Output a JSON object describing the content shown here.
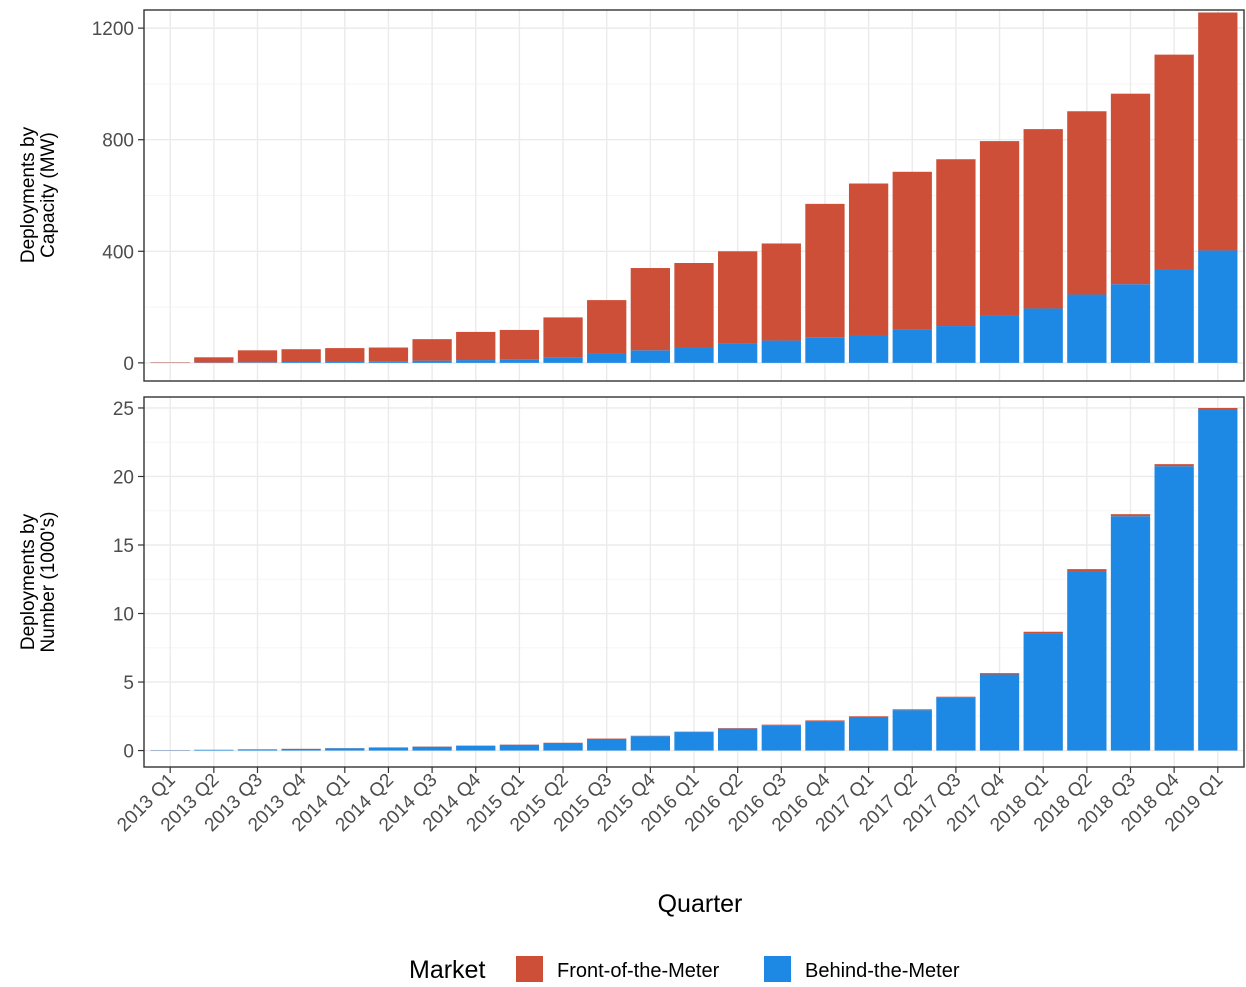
{
  "colors": {
    "front_of_meter": "#CD4F38",
    "behind_meter": "#1E88E5",
    "grid_major": "#EBEBEB",
    "grid_minor": "#F5F5F5",
    "panel_border": "#333333",
    "tick_text": "#4D4D4D"
  },
  "legend": {
    "title": "Market",
    "items": [
      {
        "label": "Front-of-the-Meter",
        "color": "#CD4F38"
      },
      {
        "label": "Behind-the-Meter",
        "color": "#1E88E5"
      }
    ],
    "placement": "bottom"
  },
  "chart_data": [
    {
      "type": "bar",
      "stacked": true,
      "ylabel": "Deployments by Capacity (MW)",
      "xlabel": "Quarter",
      "ylim": [
        -65,
        1265
      ],
      "yticks": [
        0,
        400,
        800,
        1200
      ],
      "grid": true,
      "categories": [
        "2013 Q1",
        "2013 Q2",
        "2013 Q3",
        "2013 Q4",
        "2014 Q1",
        "2014 Q2",
        "2014 Q3",
        "2014 Q4",
        "2015 Q1",
        "2015 Q2",
        "2015 Q3",
        "2015 Q4",
        "2016 Q1",
        "2016 Q2",
        "2016 Q3",
        "2016 Q4",
        "2017 Q1",
        "2017 Q2",
        "2017 Q3",
        "2017 Q4",
        "2018 Q1",
        "2018 Q2",
        "2018 Q3",
        "2018 Q4",
        "2019 Q1"
      ],
      "series": [
        {
          "name": "Behind-the-Meter",
          "values": [
            0.5,
            1,
            2,
            3,
            5,
            6,
            8,
            10,
            13,
            18,
            32,
            45,
            55,
            68,
            80,
            90,
            100,
            120,
            132,
            170,
            195,
            245,
            282,
            333,
            403
          ]
        },
        {
          "name": "Front-of-the-Meter",
          "values": [
            1.5,
            19,
            43,
            46,
            48,
            49,
            77,
            101,
            105,
            145,
            193,
            295,
            303,
            332,
            348,
            480,
            543,
            565,
            598,
            625,
            643,
            657,
            683,
            772,
            853
          ]
        }
      ]
    },
    {
      "type": "bar",
      "stacked": true,
      "ylabel": "Deployments by Number (1000's)",
      "xlabel": "Quarter",
      "ylim": [
        -1.2,
        25.8
      ],
      "yticks": [
        0,
        5,
        10,
        15,
        20,
        25
      ],
      "grid": true,
      "categories": [
        "2013 Q1",
        "2013 Q2",
        "2013 Q3",
        "2013 Q4",
        "2014 Q1",
        "2014 Q2",
        "2014 Q3",
        "2014 Q4",
        "2015 Q1",
        "2015 Q2",
        "2015 Q3",
        "2015 Q4",
        "2016 Q1",
        "2016 Q2",
        "2016 Q3",
        "2016 Q4",
        "2017 Q1",
        "2017 Q2",
        "2017 Q3",
        "2017 Q4",
        "2018 Q1",
        "2018 Q2",
        "2018 Q3",
        "2018 Q4",
        "2019 Q1"
      ],
      "series": [
        {
          "name": "Behind-the-Meter",
          "values": [
            0.03,
            0.05,
            0.08,
            0.12,
            0.17,
            0.22,
            0.28,
            0.35,
            0.42,
            0.55,
            0.85,
            1.05,
            1.35,
            1.6,
            1.85,
            2.15,
            2.45,
            2.95,
            3.85,
            5.55,
            8.55,
            13.1,
            17.1,
            20.75,
            24.85
          ]
        },
        {
          "name": "Front-of-the-Meter",
          "values": [
            0.01,
            0.01,
            0.01,
            0.01,
            0.01,
            0.01,
            0.02,
            0.02,
            0.02,
            0.02,
            0.03,
            0.03,
            0.03,
            0.04,
            0.04,
            0.05,
            0.05,
            0.06,
            0.08,
            0.1,
            0.12,
            0.14,
            0.15,
            0.15,
            0.15
          ]
        }
      ]
    }
  ]
}
